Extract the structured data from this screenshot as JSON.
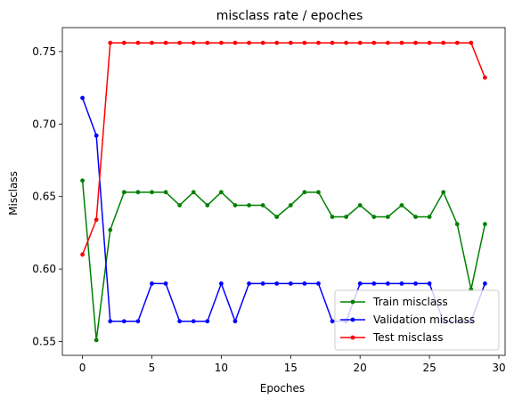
{
  "chart_data": {
    "type": "line",
    "title": "misclass rate / epoches",
    "xlabel": "Epoches",
    "ylabel": "Misclass",
    "xlim": [
      -1.45,
      30.45
    ],
    "ylim": [
      0.5405,
      0.7665
    ],
    "x_ticks": [
      0,
      5,
      10,
      15,
      20,
      25,
      30
    ],
    "y_ticks": [
      0.55,
      0.6,
      0.65,
      0.7,
      0.75
    ],
    "x_tick_labels": [
      "0",
      "5",
      "10",
      "15",
      "20",
      "25",
      "30"
    ],
    "y_tick_labels": [
      "0.55",
      "0.60",
      "0.65",
      "0.70",
      "0.75"
    ],
    "grid": false,
    "legend_position": "lower-right",
    "x": [
      0,
      1,
      2,
      3,
      4,
      5,
      6,
      7,
      8,
      9,
      10,
      11,
      12,
      13,
      14,
      15,
      16,
      17,
      18,
      19,
      20,
      21,
      22,
      23,
      24,
      25,
      26,
      27,
      28,
      29
    ],
    "series": [
      {
        "name": "Train misclass",
        "color": "#008000",
        "marker": "circle",
        "values": [
          0.661,
          0.551,
          0.627,
          0.653,
          0.653,
          0.653,
          0.653,
          0.644,
          0.653,
          0.644,
          0.653,
          0.644,
          0.644,
          0.644,
          0.636,
          0.644,
          0.653,
          0.653,
          0.636,
          0.636,
          0.644,
          0.636,
          0.636,
          0.644,
          0.636,
          0.636,
          0.653,
          0.631,
          0.586,
          0.631
        ]
      },
      {
        "name": "Validation misclass",
        "color": "#0000ff",
        "marker": "circle",
        "values": [
          0.718,
          0.692,
          0.564,
          0.564,
          0.564,
          0.59,
          0.59,
          0.564,
          0.564,
          0.564,
          0.59,
          0.564,
          0.59,
          0.59,
          0.59,
          0.59,
          0.59,
          0.59,
          0.564,
          0.564,
          0.59,
          0.59,
          0.59,
          0.59,
          0.59,
          0.59,
          0.564,
          0.564,
          0.564,
          0.59
        ]
      },
      {
        "name": "Test misclass",
        "color": "#ff0000",
        "marker": "circle",
        "values": [
          0.61,
          0.634,
          0.756,
          0.756,
          0.756,
          0.756,
          0.756,
          0.756,
          0.756,
          0.756,
          0.756,
          0.756,
          0.756,
          0.756,
          0.756,
          0.756,
          0.756,
          0.756,
          0.756,
          0.756,
          0.756,
          0.756,
          0.756,
          0.756,
          0.756,
          0.756,
          0.756,
          0.756,
          0.756,
          0.732
        ]
      }
    ]
  }
}
